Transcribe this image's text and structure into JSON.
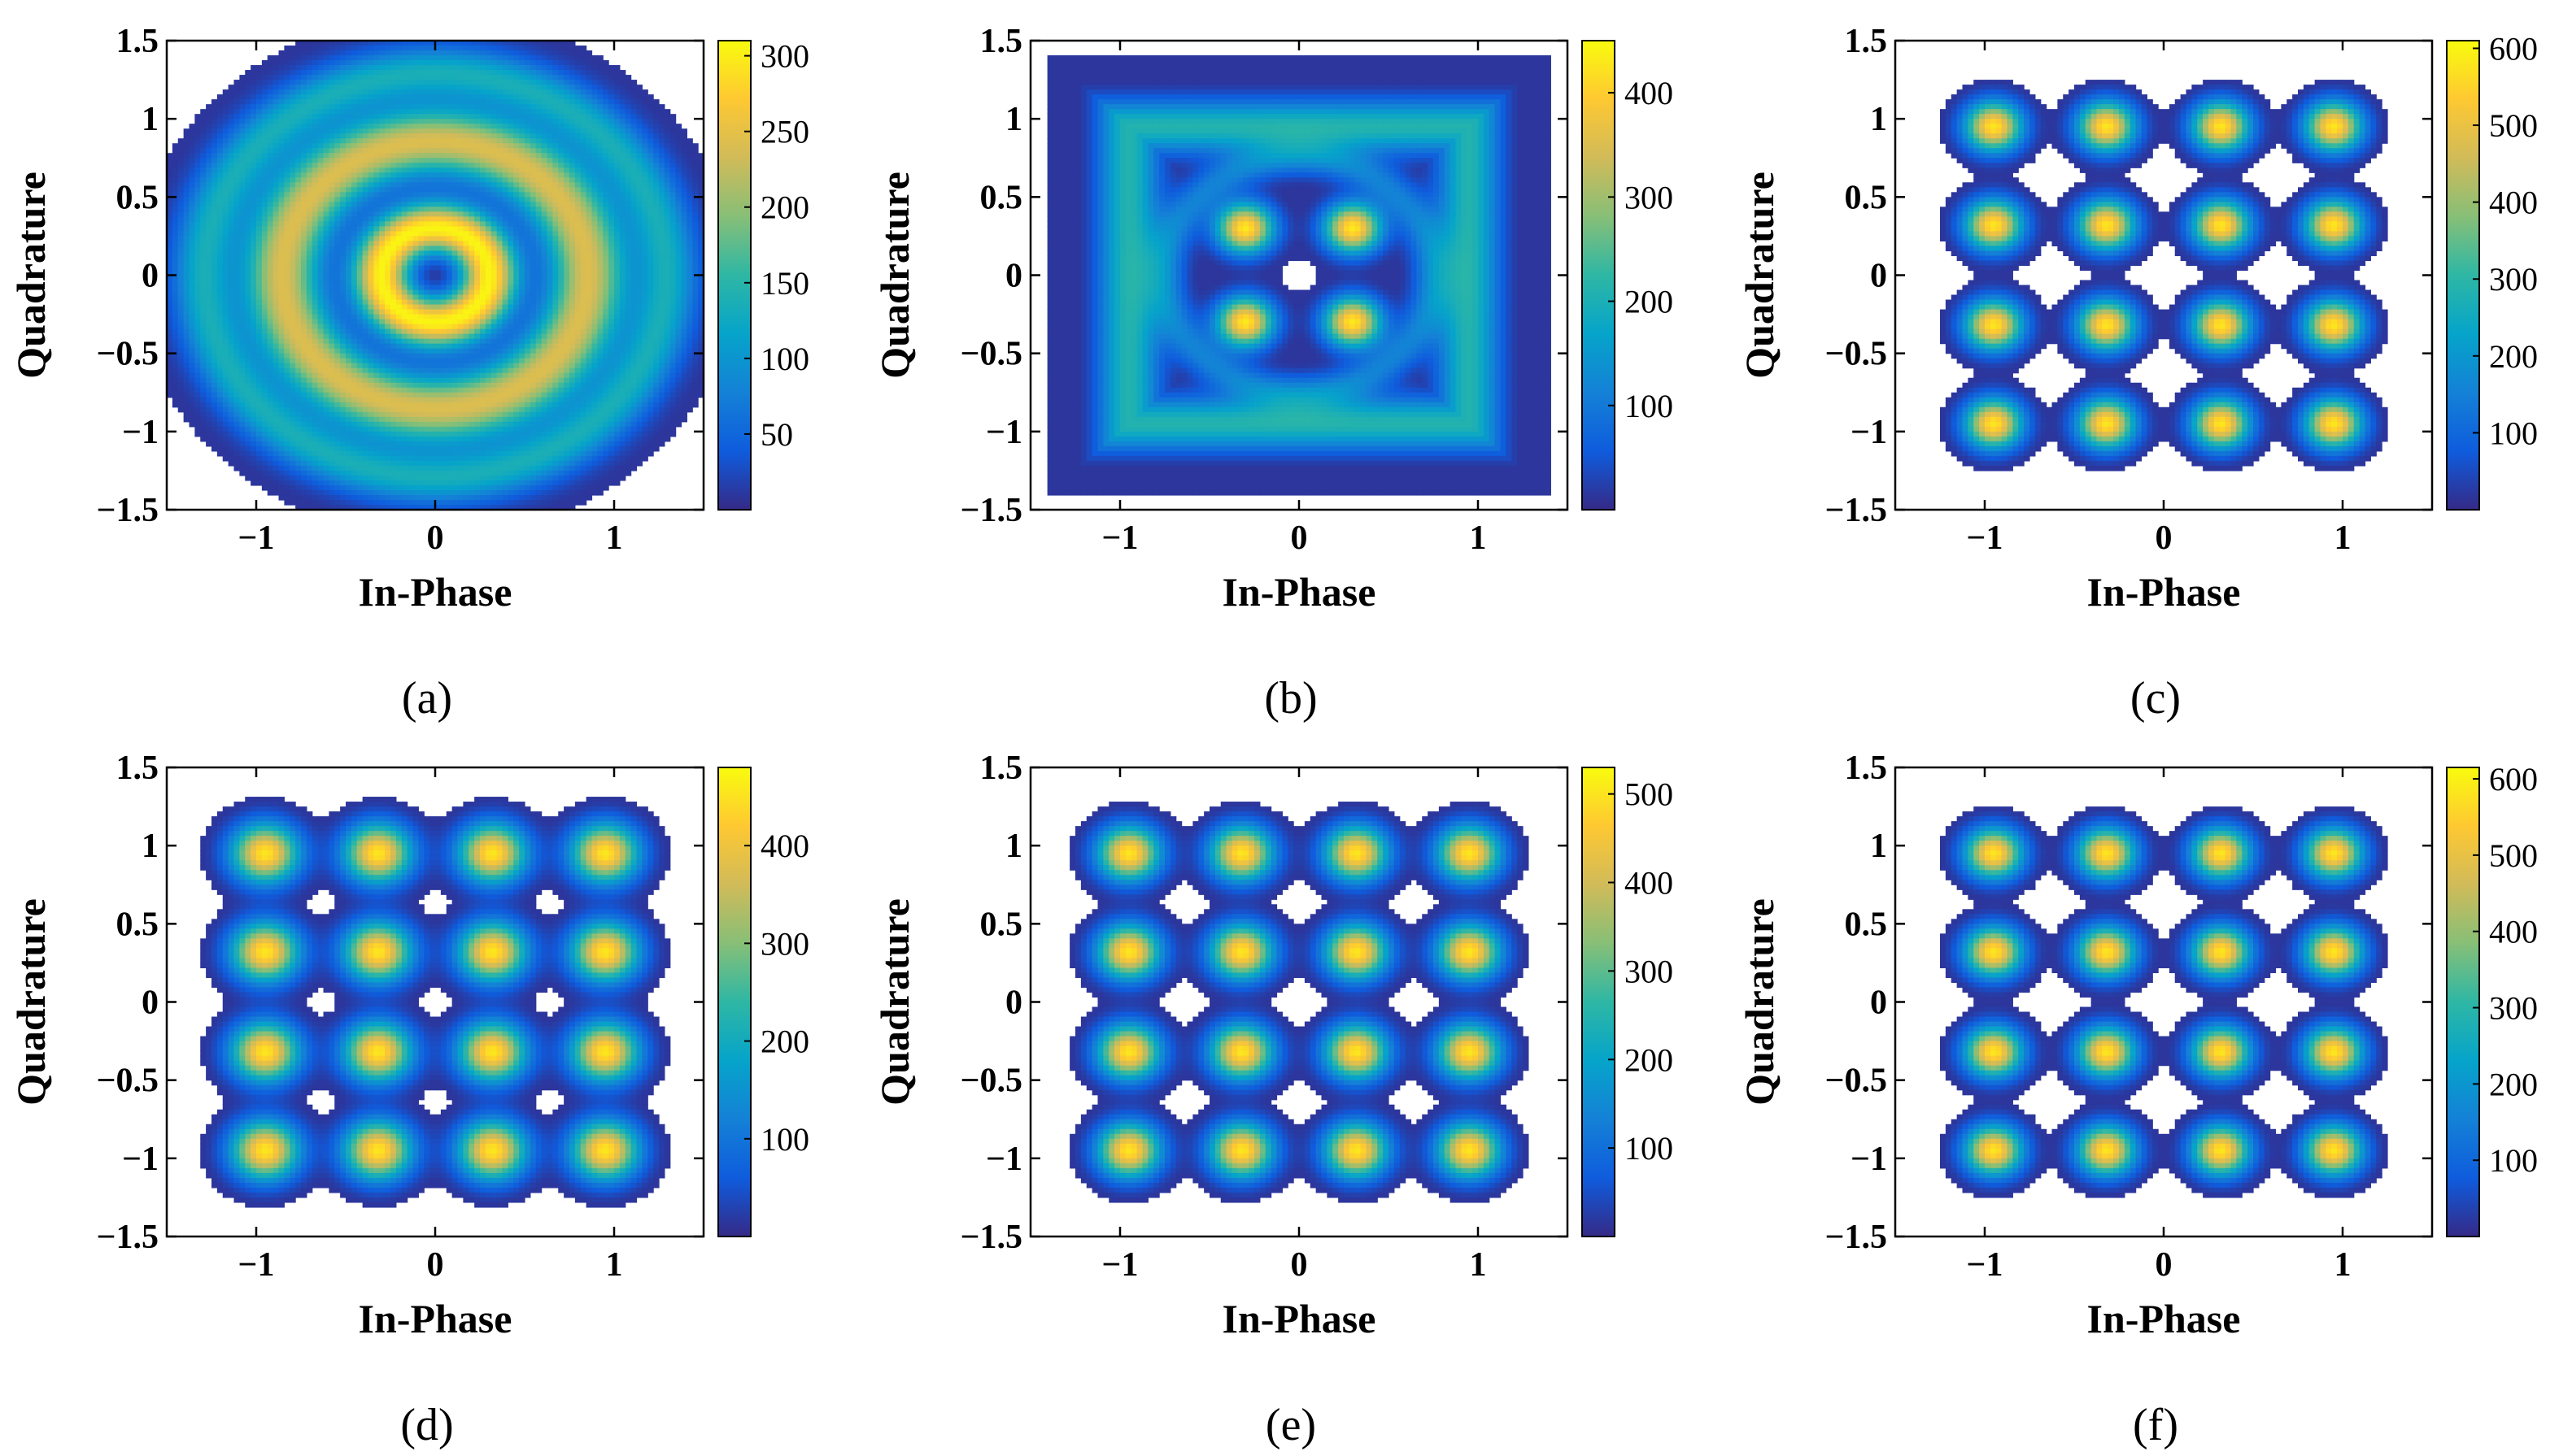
{
  "figure": {
    "panel_order": [
      "a",
      "b",
      "c",
      "d",
      "e",
      "f"
    ]
  },
  "chart_data": [
    {
      "id": "a",
      "caption": "(a)",
      "type": "heatmap",
      "pattern": "rings",
      "xlabel": "In-Phase",
      "ylabel": "Quadrature",
      "xlim": [
        -1.5,
        1.5
      ],
      "ylim": [
        -1.5,
        1.5
      ],
      "xticks": [
        -1,
        0,
        1
      ],
      "yticks": [
        -1.5,
        -1,
        -0.5,
        0,
        0.5,
        1,
        1.5
      ],
      "xtick_labels": [
        "−1",
        "0",
        "1"
      ],
      "ytick_labels": [
        "−1.5",
        "−1",
        "−0.5",
        "0",
        "0.5",
        "1",
        "1.5"
      ],
      "ring_radii": [
        0.3,
        0.85,
        1.3
      ],
      "ring_widths": [
        0.16,
        0.2,
        0.16
      ],
      "ring_peaks": [
        300,
        210,
        110
      ],
      "colorbar": {
        "min": 0,
        "max": 310,
        "ticks": [
          50,
          100,
          150,
          200,
          250,
          300
        ]
      }
    },
    {
      "id": "b",
      "caption": "(b)",
      "type": "heatmap",
      "pattern": "blurred-square",
      "xlabel": "In-Phase",
      "ylabel": "Quadrature",
      "xlim": [
        -1.5,
        1.5
      ],
      "ylim": [
        -1.5,
        1.5
      ],
      "xticks": [
        -1,
        0,
        1
      ],
      "yticks": [
        -1.5,
        -1,
        -0.5,
        0,
        0.5,
        1,
        1.5
      ],
      "xtick_labels": [
        "−1",
        "0",
        "1"
      ],
      "ytick_labels": [
        "−1.5",
        "−1",
        "−0.5",
        "0",
        "0.5",
        "1",
        "1.5"
      ],
      "inner_points": [
        [
          -0.3,
          0.3
        ],
        [
          0.3,
          0.3
        ],
        [
          -0.3,
          -0.3
        ],
        [
          0.3,
          -0.3
        ]
      ],
      "outer_level": 0.95,
      "colorbar": {
        "min": 0,
        "max": 450,
        "ticks": [
          100,
          200,
          300,
          400
        ]
      }
    },
    {
      "id": "c",
      "caption": "(c)",
      "type": "heatmap",
      "pattern": "16qam",
      "xlabel": "In-Phase",
      "ylabel": "Quadrature",
      "xlim": [
        -1.5,
        1.5
      ],
      "ylim": [
        -1.5,
        1.5
      ],
      "xticks": [
        -1,
        0,
        1
      ],
      "yticks": [
        -1.5,
        -1,
        -0.5,
        0,
        0.5,
        1,
        1.5
      ],
      "xtick_labels": [
        "−1",
        "0",
        "1"
      ],
      "ytick_labels": [
        "−1.5",
        "−1",
        "−0.5",
        "0",
        "0.5",
        "1",
        "1.5"
      ],
      "constellation_levels": [
        -0.95,
        -0.32,
        0.32,
        0.95
      ],
      "cluster_sigma": 0.11,
      "colorbar": {
        "min": 0,
        "max": 610,
        "ticks": [
          100,
          200,
          300,
          400,
          500,
          600
        ]
      }
    },
    {
      "id": "d",
      "caption": "(d)",
      "type": "heatmap",
      "pattern": "16qam",
      "xlabel": "In-Phase",
      "ylabel": "Quadrature",
      "xlim": [
        -1.5,
        1.5
      ],
      "ylim": [
        -1.5,
        1.5
      ],
      "xticks": [
        -1,
        0,
        1
      ],
      "yticks": [
        -1.5,
        -1,
        -0.5,
        0,
        0.5,
        1,
        1.5
      ],
      "xtick_labels": [
        "−1",
        "0",
        "1"
      ],
      "ytick_labels": [
        "−1.5",
        "−1",
        "−0.5",
        "0",
        "0.5",
        "1",
        "1.5"
      ],
      "constellation_levels": [
        -0.95,
        -0.32,
        0.32,
        0.95
      ],
      "cluster_sigma": 0.13,
      "colorbar": {
        "min": 0,
        "max": 480,
        "ticks": [
          100,
          200,
          300,
          400
        ]
      }
    },
    {
      "id": "e",
      "caption": "(e)",
      "type": "heatmap",
      "pattern": "16qam",
      "xlabel": "In-Phase",
      "ylabel": "Quadrature",
      "xlim": [
        -1.5,
        1.5
      ],
      "ylim": [
        -1.5,
        1.5
      ],
      "xticks": [
        -1,
        0,
        1
      ],
      "yticks": [
        -1.5,
        -1,
        -0.5,
        0,
        0.5,
        1,
        1.5
      ],
      "xtick_labels": [
        "−1",
        "0",
        "1"
      ],
      "ytick_labels": [
        "−1.5",
        "−1",
        "−0.5",
        "0",
        "0.5",
        "1",
        "1.5"
      ],
      "constellation_levels": [
        -0.95,
        -0.32,
        0.32,
        0.95
      ],
      "cluster_sigma": 0.12,
      "colorbar": {
        "min": 0,
        "max": 530,
        "ticks": [
          100,
          200,
          300,
          400,
          500
        ]
      }
    },
    {
      "id": "f",
      "caption": "(f)",
      "type": "heatmap",
      "pattern": "16qam",
      "xlabel": "In-Phase",
      "ylabel": "Quadrature",
      "xlim": [
        -1.5,
        1.5
      ],
      "ylim": [
        -1.5,
        1.5
      ],
      "xticks": [
        -1,
        0,
        1
      ],
      "yticks": [
        -1.5,
        -1,
        -0.5,
        0,
        0.5,
        1,
        1.5
      ],
      "xtick_labels": [
        "−1",
        "0",
        "1"
      ],
      "ytick_labels": [
        "−1.5",
        "−1",
        "−0.5",
        "0",
        "0.5",
        "1",
        "1.5"
      ],
      "constellation_levels": [
        -0.95,
        -0.32,
        0.32,
        0.95
      ],
      "cluster_sigma": 0.11,
      "colorbar": {
        "min": 0,
        "max": 615,
        "ticks": [
          100,
          200,
          300,
          400,
          500,
          600
        ]
      }
    }
  ],
  "colormap": {
    "name": "parula",
    "stops": [
      "#352a87",
      "#0f5cdd",
      "#1481d6",
      "#06a4ca",
      "#2eb7a4",
      "#87bf77",
      "#d1bb59",
      "#fec832",
      "#f9fb0e"
    ]
  }
}
